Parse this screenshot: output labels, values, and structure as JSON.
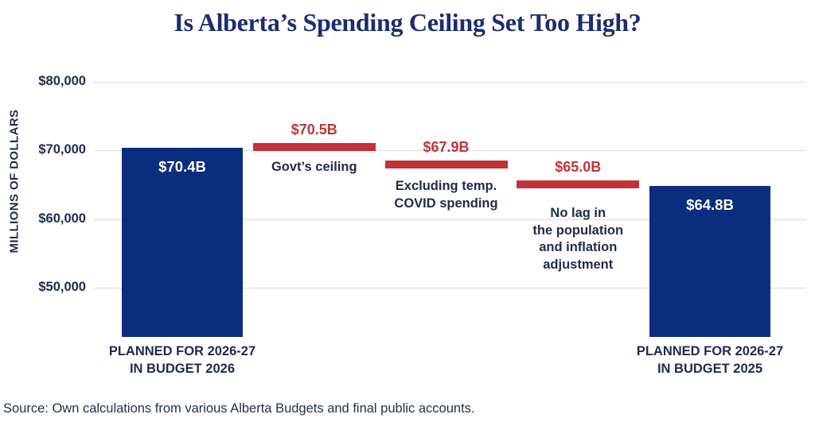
{
  "title": "Is Alberta’s Spending Ceiling Set Too High?",
  "source_note": "Source: Own calculations from various Alberta Budgets and final public accounts.",
  "colors": {
    "bar_blue": "#0b2d7d",
    "ceiling_red": "#c23237",
    "red_text": "#c0343a",
    "navy_text": "#1e2b4d",
    "title_navy": "#1c2d70",
    "gridline": "#d9d9d9"
  },
  "chart_data": {
    "type": "bar",
    "title": "Is Alberta’s Spending Ceiling Set Too High?",
    "ylabel": "MILLIONS OF DOLLARS",
    "ylim": [
      42800,
      80000
    ],
    "grid": true,
    "yticks": [
      {
        "value": 80000,
        "label": "$80,000"
      },
      {
        "value": 70000,
        "label": "$70,000"
      },
      {
        "value": 60000,
        "label": "$60,000"
      },
      {
        "value": 50000,
        "label": "$50,000"
      }
    ],
    "items": [
      {
        "kind": "bar",
        "slot": 0,
        "value": 70400,
        "value_label": "$70.4B",
        "category_lines": [
          "PLANNED FOR 2026-27",
          "IN BUDGET 2026"
        ]
      },
      {
        "kind": "ceiling",
        "slot": 1,
        "value": 70500,
        "value_label": "$70.5B",
        "annotation_lines": [
          "Govt’s ceiling"
        ]
      },
      {
        "kind": "ceiling",
        "slot": 2,
        "value": 67900,
        "value_label": "$67.9B",
        "annotation_lines": [
          "Excluding temp.",
          "COVID spending"
        ]
      },
      {
        "kind": "ceiling",
        "slot": 3,
        "value": 65000,
        "value_label": "$65.0B",
        "annotation_lines": [
          "No lag in",
          "the population",
          "and inflation",
          "adjustment"
        ]
      },
      {
        "kind": "bar",
        "slot": 4,
        "value": 64800,
        "value_label": "$64.8B",
        "category_lines": [
          "PLANNED FOR 2026-27",
          "IN BUDGET 2025"
        ]
      }
    ]
  }
}
